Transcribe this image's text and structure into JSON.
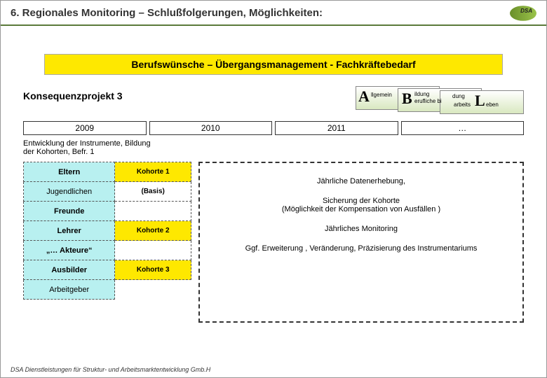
{
  "header": {
    "title": "6. Regionales Monitoring – Schlußfolgerungen, Möglichkeiten:"
  },
  "yellowBar": "Berufswünsche – Übergangsmanagement - Fachkräftebedarf",
  "projectTitle": "Konsequenzprojekt 3",
  "abl": {
    "A": "A",
    "A_txt": "llgemein",
    "B": "B",
    "B_txt1": "ildung",
    "B_txt2": "erufliche bi",
    "B_txt3": "dung",
    "L": "L",
    "L_txt1": "arbeits",
    "L_txt2": "eben"
  },
  "years": [
    "2009",
    "2010",
    "2011",
    "…"
  ],
  "devNote": "Entwicklung der Instrumente, Bildung der Kohorten, Befr. 1",
  "groups": [
    {
      "label": "Eltern",
      "bold": true,
      "right": "Kohorte 1",
      "rightClass": "koh"
    },
    {
      "label": "Jugendlichen",
      "bold": false,
      "right": "(Basis)",
      "rightClass": "basis"
    },
    {
      "label": "Freunde",
      "bold": true,
      "right": "",
      "rightClass": "empty-koh"
    },
    {
      "label": "Lehrer",
      "bold": true,
      "right": "Kohorte 2",
      "rightClass": "koh"
    },
    {
      "label": "„… Akteure“",
      "bold": true,
      "right": "",
      "rightClass": "empty-koh"
    },
    {
      "label": "Ausbilder",
      "bold": true,
      "right": "Kohorte 3",
      "rightClass": "koh"
    },
    {
      "label": "Arbeitgeber",
      "bold": false,
      "right": null
    }
  ],
  "dashed": [
    "Jährliche Datenerhebung,",
    "Sicherung der Kohorte\n(Möglichkeit der Kompensation von Ausfällen )",
    "Jährliches Monitoring",
    "Ggf. Erweiterung , Veränderung, Präzisierung des Instrumentariums"
  ],
  "footer": "DSA Dienstleistungen für Struktur- und Arbeitsmarktentwicklung Gmb.H",
  "colors": {
    "yellow": "#fee800",
    "cyan": "#b8f0f0",
    "green1": "#6a8f2a",
    "green2": "#9ac34a"
  }
}
